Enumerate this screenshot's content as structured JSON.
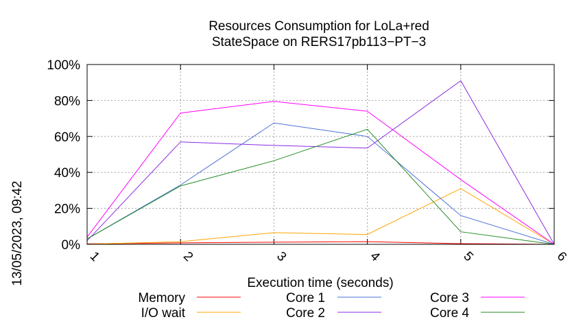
{
  "chart_data": {
    "type": "line",
    "title": "Resources Consumption for LoLa+red",
    "subtitle": "StateSpace on RERS17pb113−PT−3",
    "xlabel": "Execution time (seconds)",
    "ylabel": "",
    "side_label": "13/05/2023, 09:42",
    "x": [
      1,
      2,
      3,
      4,
      5,
      6
    ],
    "xlim": [
      1,
      6
    ],
    "ylim": [
      0,
      100
    ],
    "x_ticks": [
      "1",
      "2",
      "3",
      "4",
      "5",
      "6"
    ],
    "y_ticks": [
      "0%",
      "20%",
      "40%",
      "60%",
      "80%",
      "100%"
    ],
    "grid": true,
    "legend_position": "bottom",
    "series": [
      {
        "name": "Memory",
        "color": "#ff0000",
        "values": [
          0.3,
          0.8,
          1.2,
          1.5,
          0.4,
          0
        ]
      },
      {
        "name": "I/O wait",
        "color": "#ffa500",
        "values": [
          0.1,
          1.5,
          6.5,
          5.5,
          31,
          0
        ]
      },
      {
        "name": "Core 1",
        "color": "#4a70d8",
        "values": [
          3,
          33,
          67.5,
          60,
          16,
          0
        ]
      },
      {
        "name": "Core 2",
        "color": "#8a2be2",
        "values": [
          2,
          57,
          55,
          53.5,
          91,
          0
        ]
      },
      {
        "name": "Core 3",
        "color": "#ff00ff",
        "values": [
          4,
          73,
          79.5,
          74,
          36,
          0
        ]
      },
      {
        "name": "Core 4",
        "color": "#228b22",
        "values": [
          3,
          32.5,
          46.5,
          64,
          7,
          0
        ]
      }
    ]
  }
}
